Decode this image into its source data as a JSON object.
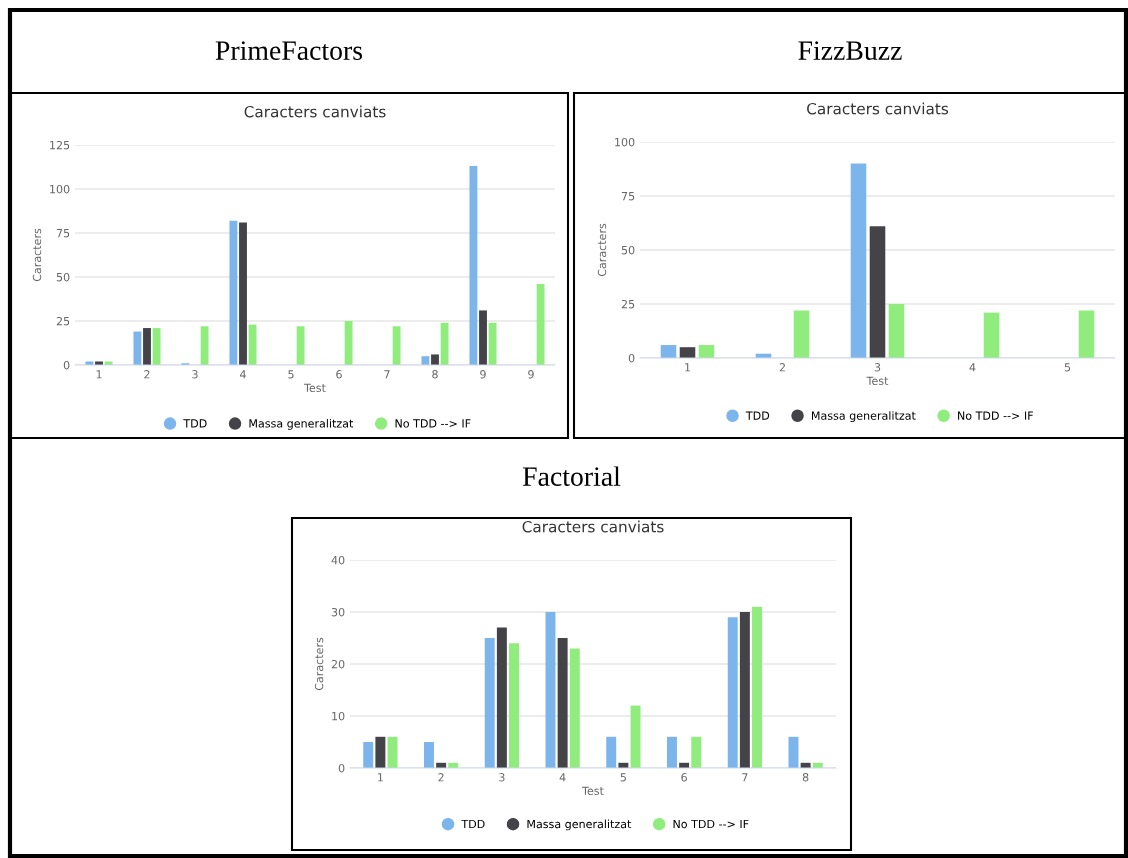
{
  "chart_data": [
    {
      "type": "bar",
      "subtitle": "PrimeFactors",
      "title": "Caracters canviats",
      "xlabel": "Test",
      "ylabel": "Caracters",
      "categories": [
        "1",
        "2",
        "3",
        "4",
        "5",
        "6",
        "7",
        "8",
        "9",
        "9"
      ],
      "series": [
        {
          "name": "TDD",
          "color": "#7cb5ec",
          "values": [
            2,
            19,
            1,
            82,
            0,
            0,
            0,
            5,
            113,
            0
          ]
        },
        {
          "name": "Massa generalitzat",
          "color": "#434348",
          "values": [
            2,
            21,
            0,
            81,
            0,
            0,
            0,
            6,
            31,
            0
          ]
        },
        {
          "name": "No TDD --> IF",
          "color": "#90ed7d",
          "values": [
            2,
            21,
            22,
            23,
            22,
            25,
            22,
            24,
            24,
            46
          ]
        }
      ],
      "ylim": [
        0,
        125
      ],
      "yticks": [
        0,
        25,
        50,
        75,
        100,
        125
      ],
      "grid": "y",
      "legend": "bottom",
      "marker": "circle"
    },
    {
      "type": "bar",
      "subtitle": "FizzBuzz",
      "title": "Caracters canviats",
      "xlabel": "Test",
      "ylabel": "Caracters",
      "categories": [
        "1",
        "2",
        "3",
        "4",
        "5"
      ],
      "series": [
        {
          "name": "TDD",
          "color": "#7cb5ec",
          "values": [
            6,
            2,
            90,
            0,
            0
          ]
        },
        {
          "name": "Massa generalitzat",
          "color": "#434348",
          "values": [
            5,
            0,
            61,
            0,
            0
          ]
        },
        {
          "name": "No TDD --> IF",
          "color": "#90ed7d",
          "values": [
            6,
            22,
            25,
            21,
            22
          ]
        }
      ],
      "ylim": [
        0,
        100
      ],
      "yticks": [
        0,
        25,
        50,
        75,
        100
      ],
      "grid": "y",
      "legend": "bottom",
      "marker": "circle"
    },
    {
      "type": "bar",
      "subtitle": "Factorial",
      "title": "Caracters canviats",
      "xlabel": "Test",
      "ylabel": "Caracters",
      "categories": [
        "1",
        "2",
        "3",
        "4",
        "5",
        "6",
        "7",
        "8"
      ],
      "series": [
        {
          "name": "TDD",
          "color": "#7cb5ec",
          "values": [
            5,
            5,
            25,
            30,
            6,
            6,
            29,
            6
          ]
        },
        {
          "name": "Massa generalitzat",
          "color": "#434348",
          "values": [
            6,
            1,
            27,
            25,
            1,
            1,
            30,
            1
          ]
        },
        {
          "name": "No TDD --> IF",
          "color": "#90ed7d",
          "values": [
            6,
            1,
            24,
            23,
            12,
            6,
            31,
            1
          ]
        }
      ],
      "ylim": [
        0,
        40
      ],
      "yticks": [
        0,
        10,
        20,
        30,
        40
      ],
      "grid": "y",
      "legend": "bottom",
      "marker": "circle"
    }
  ]
}
